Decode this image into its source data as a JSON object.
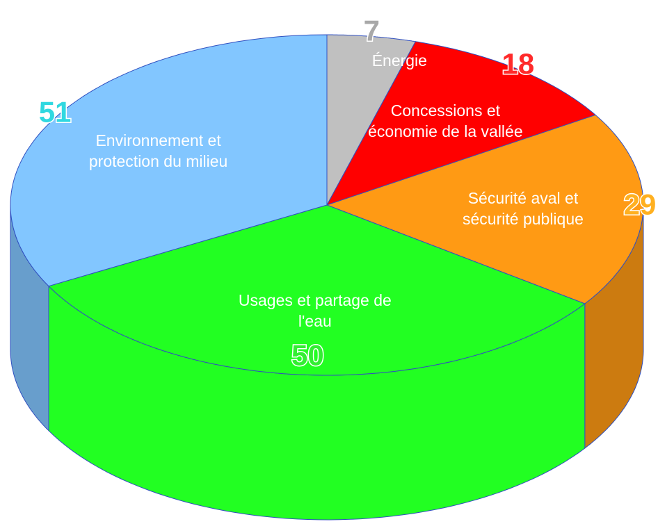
{
  "chart_data": {
    "type": "pie3d",
    "categories": [
      "Énergie",
      "Concessions et économie de la vallée",
      "Sécurité aval et sécurité publique",
      "Usages et partage de l'eau",
      "Environnement et protection du milieu"
    ],
    "values": [
      7,
      18,
      29,
      50,
      51
    ],
    "colors": [
      "#c0c0c0",
      "#ff0000",
      "#ff9a14",
      "#22ff22",
      "#82c6ff"
    ],
    "label_colors": [
      "#a8a8a8",
      "#ff2a2a",
      "#ffb020",
      "#33ee33",
      "#30d8e0"
    ]
  }
}
